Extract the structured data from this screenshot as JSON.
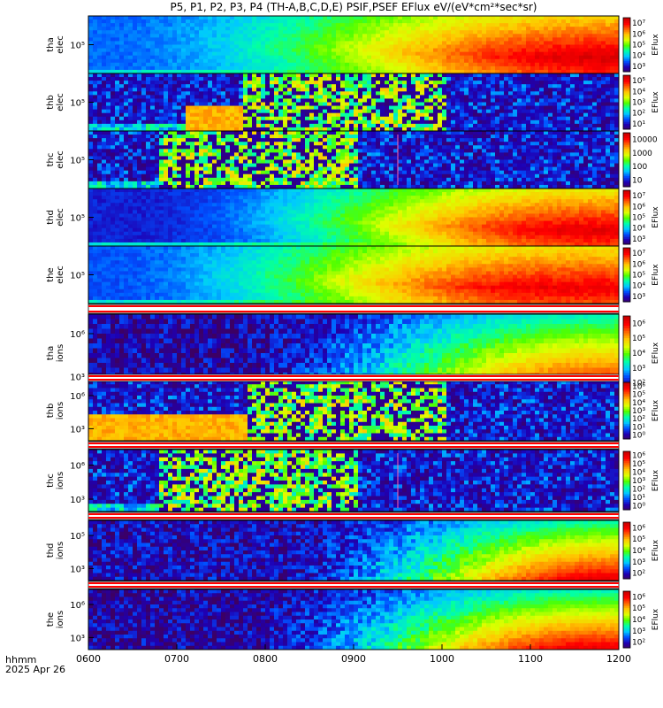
{
  "title": "P5, P1, P2, P3, P4 (TH-A,B,C,D,E) PSIF,PSEF EFlux eV/(eV*cm²*sec*sr)",
  "footer": {
    "time_label": "hhmm",
    "date_label": "2025 Apr 26"
  },
  "colors": {
    "separator_red": "#ff0000",
    "colormap": [
      "#3c0064",
      "#1e00b4",
      "#0050ff",
      "#00c8ff",
      "#00ffaa",
      "#50ff00",
      "#dcff00",
      "#ffc800",
      "#ff6400",
      "#ff0000",
      "#c80000"
    ]
  },
  "chart_data": {
    "type": "heatmap",
    "title": "P5, P1, P2, P3, P4 (TH-A,B,C,D,E) PSIF,PSEF EFlux eV/(eV*cm²*sec*sr)",
    "x_ticks": [
      "0600",
      "0700",
      "0800",
      "0900",
      "1000",
      "1100",
      "1200"
    ],
    "x_range": [
      "0600",
      "1200"
    ],
    "colorbar_label": "EFlux",
    "panels": [
      {
        "label_lines": [
          "tha",
          "elec"
        ],
        "y_tick": "10⁵",
        "colorbar_ticks": [
          "10⁷",
          "10⁶",
          "10⁵",
          "10⁴",
          "10³"
        ],
        "colorbar_label": "EFlux",
        "style": "smooth",
        "floor": 0.22,
        "peak": 0.97,
        "onset": "0640",
        "saturation": "1150"
      },
      {
        "label_lines": [
          "thb",
          "elec"
        ],
        "y_tick": "10⁵",
        "colorbar_ticks": [
          "10⁵",
          "10⁴",
          "10³",
          "10²",
          "10¹"
        ],
        "colorbar_label": "EFlux",
        "style": "noisy",
        "block_start": "0745",
        "block_end": "1000",
        "step_start": "0705",
        "step_end": "0745"
      },
      {
        "label_lines": [
          "thc",
          "elec"
        ],
        "y_tick": "10⁵",
        "colorbar_ticks": [
          "10000",
          "1000",
          "100",
          "10"
        ],
        "colorbar_label": "",
        "style": "noisy",
        "block_start": "0648",
        "block_end": "0900",
        "spike": "0930"
      },
      {
        "label_lines": [
          "thd",
          "elec"
        ],
        "y_tick": "10⁵",
        "colorbar_ticks": [
          "10⁷",
          "10⁶",
          "10⁵",
          "10⁴",
          "10³"
        ],
        "colorbar_label": "EFlux",
        "style": "smooth",
        "floor": 0.14,
        "peak": 0.95,
        "onset": "0700",
        "saturation": "1140"
      },
      {
        "label_lines": [
          "the",
          "elec"
        ],
        "y_tick": "10⁵",
        "colorbar_ticks": [
          "10⁷",
          "10⁶",
          "10⁵",
          "10⁴",
          "10³"
        ],
        "colorbar_label": "EFlux",
        "style": "smooth",
        "floor": 0.2,
        "peak": 0.93,
        "onset": "0640",
        "saturation": "1110"
      },
      {
        "label_lines": [
          "tha",
          "ions"
        ],
        "y_ticks": [
          "10⁶",
          "10³"
        ],
        "colorbar_ticks": [
          "10⁶",
          "10⁵",
          "10⁴",
          "10³",
          "10²"
        ],
        "colorbar_label": "EFlux",
        "style": "ions",
        "floor": 0.08,
        "peak": 0.96,
        "onset": "0830",
        "saturation": "1145"
      },
      {
        "label_lines": [
          "thb",
          "ions"
        ],
        "y_ticks": [
          "10⁶",
          "10³"
        ],
        "colorbar_ticks": [
          "10⁶",
          "10⁵",
          "10⁴",
          "10³",
          "10²",
          "10¹",
          "10⁰"
        ],
        "colorbar_label": "EFlux",
        "style": "noisy",
        "block_start": "0748",
        "block_end": "1000",
        "step_start": "0600",
        "step_end": "0748"
      },
      {
        "label_lines": [
          "thc",
          "ions"
        ],
        "y_ticks": [
          "10⁶",
          "10³"
        ],
        "colorbar_ticks": [
          "10⁶",
          "10⁵",
          "10⁴",
          "10³",
          "10²",
          "10¹",
          "10⁰"
        ],
        "colorbar_label": "EFlux",
        "style": "noisy",
        "block_start": "0648",
        "block_end": "0900",
        "spike": "0930"
      },
      {
        "label_lines": [
          "thd",
          "ions"
        ],
        "y_ticks": [
          "10⁵",
          "10³"
        ],
        "colorbar_ticks": [
          "10⁶",
          "10⁵",
          "10⁴",
          "10³",
          "10²"
        ],
        "colorbar_label": "EFlux",
        "style": "ions",
        "floor": 0.1,
        "peak": 0.97,
        "onset": "0900",
        "saturation": "1150"
      },
      {
        "label_lines": [
          "the",
          "ions"
        ],
        "y_ticks": [
          "10⁶",
          "10³"
        ],
        "colorbar_ticks": [
          "10⁶",
          "10⁵",
          "10⁴",
          "10³",
          "10²"
        ],
        "colorbar_label": "EFlux",
        "style": "ions",
        "floor": 0.08,
        "peak": 0.96,
        "onset": "0830",
        "saturation": "1140"
      }
    ]
  }
}
